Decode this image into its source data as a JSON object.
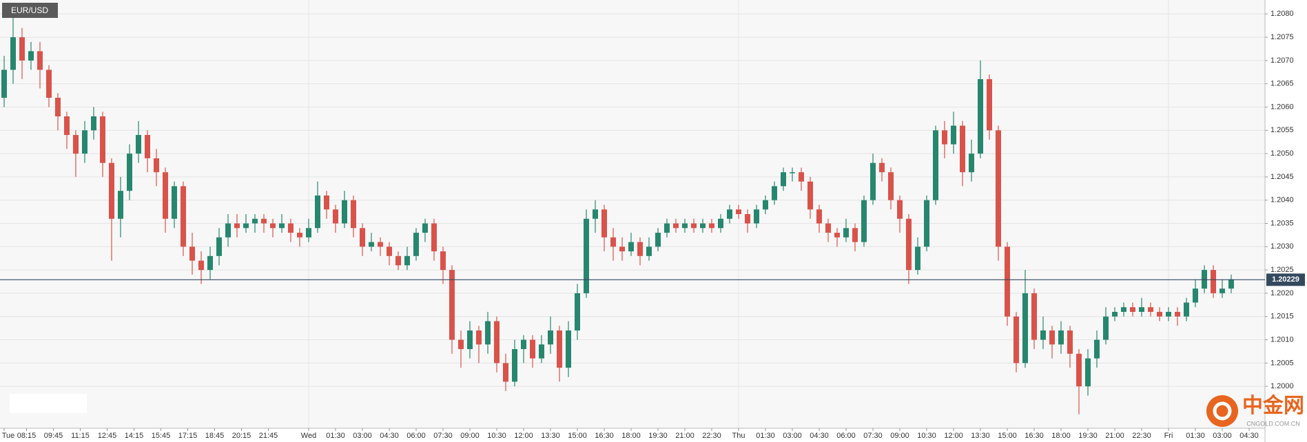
{
  "chart_data": {
    "type": "candlestick",
    "title": "EUR/USD",
    "open": [
      1.2062,
      1.2068,
      1.2075,
      1.207,
      1.2072,
      1.2068,
      1.2062,
      1.2058,
      1.2054,
      1.205,
      1.2055,
      1.2058,
      1.2048,
      1.2036,
      1.2042,
      1.205,
      1.2054,
      1.2049,
      1.2046,
      1.2036,
      1.2043,
      1.203,
      1.2027,
      1.2025,
      1.2028,
      1.2032,
      1.2035,
      1.2034,
      1.2035,
      1.2036,
      1.2035,
      1.2034,
      1.2035,
      1.2033,
      1.2032,
      1.2034,
      1.2041,
      1.2038,
      1.2035,
      1.204,
      1.2034,
      1.203,
      1.2031,
      1.203,
      1.2028,
      1.2026,
      1.2028,
      1.2033,
      1.2035,
      1.2029,
      1.2025,
      1.201,
      1.2008,
      1.2012,
      1.2009,
      1.2014,
      1.2005,
      1.2001,
      1.2008,
      1.201,
      1.2006,
      1.2009,
      1.2012,
      1.2004,
      1.2012,
      1.202,
      1.2036,
      1.2038,
      1.2032,
      1.203,
      1.2029,
      1.2031,
      1.2028,
      1.203,
      1.2033,
      1.2035,
      1.2034,
      1.2035,
      1.2034,
      1.2035,
      1.2034,
      1.2036,
      1.2038,
      1.2037,
      1.2035,
      1.2038,
      1.204,
      1.2043,
      1.2046,
      1.2046,
      1.2044,
      1.2038,
      1.2035,
      1.2033,
      1.2032,
      1.2034,
      1.2031,
      1.204,
      1.2048,
      1.2046,
      1.204,
      1.2036,
      1.2025,
      1.203,
      1.204,
      1.2055,
      1.2052,
      1.2056,
      1.2046,
      1.205,
      1.2066,
      1.2055,
      1.203,
      1.2015,
      1.2005,
      1.202,
      1.201,
      1.2012,
      1.2009,
      1.2012,
      1.2007,
      1.2,
      1.2006,
      1.201,
      1.2015,
      1.2016,
      1.2017,
      1.2016,
      1.2017,
      1.2016,
      1.2015,
      1.2016,
      1.2015,
      1.2018,
      1.2021,
      1.2025,
      1.202,
      1.2021
    ],
    "high": [
      1.2071,
      1.208,
      1.2077,
      1.2074,
      1.2074,
      1.2069,
      1.2063,
      1.2059,
      1.2055,
      1.2057,
      1.206,
      1.2059,
      1.2049,
      1.2045,
      1.2052,
      1.2057,
      1.2055,
      1.2051,
      1.2047,
      1.2044,
      1.2044,
      1.2033,
      1.2029,
      1.203,
      1.2034,
      1.2037,
      1.2037,
      1.2037,
      1.2037,
      1.2037,
      1.2036,
      1.2037,
      1.2036,
      1.2034,
      1.2036,
      1.2044,
      1.2042,
      1.2039,
      1.2042,
      1.2041,
      1.2035,
      1.2033,
      1.2032,
      1.2031,
      1.2029,
      1.203,
      1.2034,
      1.2036,
      1.2036,
      1.203,
      1.2026,
      1.2012,
      1.2014,
      1.2013,
      1.2016,
      1.2015,
      1.2007,
      1.201,
      1.2011,
      1.2011,
      1.2011,
      1.2015,
      1.2013,
      1.2014,
      1.2022,
      1.2038,
      1.204,
      1.2039,
      1.2034,
      1.2032,
      1.2033,
      1.2032,
      1.2032,
      1.2034,
      1.2036,
      1.2036,
      1.2036,
      1.2036,
      1.2036,
      1.2036,
      1.2037,
      1.2039,
      1.2039,
      1.2038,
      1.2039,
      1.2041,
      1.2044,
      1.2047,
      1.2047,
      1.2047,
      1.2045,
      1.2039,
      1.2036,
      1.2034,
      1.2036,
      1.2035,
      1.2041,
      1.205,
      1.2049,
      1.2047,
      1.2041,
      1.2037,
      1.2032,
      1.2041,
      1.2056,
      1.2057,
      1.2059,
      1.2057,
      1.2053,
      1.207,
      1.2067,
      1.2056,
      1.2031,
      1.2016,
      1.2025,
      1.2021,
      1.2015,
      1.2013,
      1.2014,
      1.2013,
      1.2008,
      1.2008,
      1.2012,
      1.2017,
      1.2017,
      1.2018,
      1.2018,
      1.2019,
      1.2018,
      1.2017,
      1.2017,
      1.2017,
      1.2019,
      1.2023,
      1.2026,
      1.2026,
      1.2023,
      1.2024
    ],
    "low": [
      1.206,
      1.2065,
      1.2066,
      1.2068,
      1.2064,
      1.206,
      1.2055,
      1.2051,
      1.2045,
      1.2048,
      1.2053,
      1.2045,
      1.2027,
      1.2032,
      1.204,
      1.2048,
      1.2046,
      1.2043,
      1.2033,
      1.2034,
      1.2028,
      1.2024,
      1.2022,
      1.2023,
      1.2026,
      1.203,
      1.2032,
      1.2033,
      1.2033,
      1.2033,
      1.2032,
      1.2033,
      1.2031,
      1.203,
      1.2031,
      1.2033,
      1.2036,
      1.2033,
      1.2034,
      1.2032,
      1.2028,
      1.2029,
      1.2028,
      1.2026,
      1.2025,
      1.2025,
      1.2027,
      1.2031,
      1.2027,
      1.2022,
      1.2007,
      1.2004,
      1.2006,
      1.2005,
      1.2007,
      1.2003,
      1.1999,
      1.2,
      1.2005,
      1.2004,
      1.2005,
      1.2007,
      1.2001,
      1.2002,
      1.201,
      1.2019,
      1.2033,
      1.2029,
      1.2027,
      1.2027,
      1.2028,
      1.2026,
      1.2027,
      1.2029,
      1.2032,
      1.2033,
      1.2033,
      1.2033,
      1.2033,
      1.2033,
      1.2033,
      1.2035,
      1.2036,
      1.2033,
      1.2034,
      1.2037,
      1.2039,
      1.2042,
      1.2044,
      1.2042,
      1.2036,
      1.2033,
      1.2031,
      1.203,
      1.2031,
      1.2029,
      1.203,
      1.2039,
      1.2044,
      1.2038,
      1.2033,
      1.2022,
      1.2024,
      1.2029,
      1.2039,
      1.2049,
      1.205,
      1.2043,
      1.2044,
      1.2049,
      1.2053,
      1.2027,
      1.2013,
      1.2003,
      1.2004,
      1.2008,
      1.2008,
      1.2006,
      1.2007,
      1.2004,
      1.1994,
      1.1998,
      1.2004,
      1.2009,
      1.2014,
      1.2015,
      1.2015,
      1.2015,
      1.2015,
      1.2014,
      1.2014,
      1.2013,
      1.2014,
      1.2017,
      1.202,
      1.2019,
      1.2019,
      1.202
    ],
    "close": [
      1.2068,
      1.2075,
      1.207,
      1.2072,
      1.2068,
      1.2062,
      1.2058,
      1.2054,
      1.205,
      1.2055,
      1.2058,
      1.2048,
      1.2036,
      1.2042,
      1.205,
      1.2054,
      1.2049,
      1.2046,
      1.2036,
      1.2043,
      1.203,
      1.2027,
      1.2025,
      1.2028,
      1.2032,
      1.2035,
      1.2034,
      1.2035,
      1.2036,
      1.2035,
      1.2034,
      1.2035,
      1.2033,
      1.2032,
      1.2034,
      1.2041,
      1.2038,
      1.2035,
      1.204,
      1.2034,
      1.203,
      1.2031,
      1.203,
      1.2028,
      1.2026,
      1.2028,
      1.2033,
      1.2035,
      1.2029,
      1.2025,
      1.201,
      1.2008,
      1.2012,
      1.2009,
      1.2014,
      1.2005,
      1.2001,
      1.2008,
      1.201,
      1.2006,
      1.2009,
      1.2012,
      1.2004,
      1.2012,
      1.202,
      1.2036,
      1.2038,
      1.2032,
      1.203,
      1.2029,
      1.2031,
      1.2028,
      1.203,
      1.2033,
      1.2035,
      1.2034,
      1.2035,
      1.2034,
      1.2035,
      1.2034,
      1.2036,
      1.2038,
      1.2037,
      1.2035,
      1.2038,
      1.204,
      1.2043,
      1.2046,
      1.2046,
      1.2044,
      1.2038,
      1.2035,
      1.2033,
      1.2032,
      1.2034,
      1.2031,
      1.204,
      1.2048,
      1.2046,
      1.204,
      1.2036,
      1.2025,
      1.203,
      1.204,
      1.2055,
      1.2052,
      1.2056,
      1.2046,
      1.205,
      1.2066,
      1.2055,
      1.203,
      1.2015,
      1.2005,
      1.202,
      1.201,
      1.2012,
      1.2009,
      1.2012,
      1.2007,
      1.2,
      1.2006,
      1.201,
      1.2015,
      1.2016,
      1.2017,
      1.2016,
      1.2017,
      1.2016,
      1.2015,
      1.2016,
      1.2015,
      1.2018,
      1.2021,
      1.2025,
      1.202,
      1.2021,
      1.2023
    ],
    "up_color": "#26876e",
    "down_color": "#d9534a",
    "last_price": 1.20229,
    "last_price_color": "#34495e",
    "ylim": [
      1.1991,
      1.2083
    ],
    "yticks": [
      {
        "value": 1.2,
        "label": "1.2000"
      },
      1.2005,
      {
        "value": 1.201,
        "label": "1.2010"
      },
      1.2015,
      {
        "value": 1.202,
        "label": "1.2020"
      },
      1.2025,
      {
        "value": 1.203,
        "label": "1.2030"
      },
      1.2035,
      {
        "value": 1.204,
        "label": "1.2040"
      },
      1.2045,
      {
        "value": 1.205,
        "label": "1.2050"
      },
      1.2055,
      {
        "value": 1.206,
        "label": "1.2060"
      },
      1.2065,
      {
        "value": 1.207,
        "label": "1.2070"
      },
      1.2075,
      {
        "value": 1.208,
        "label": "1.2080"
      }
    ],
    "xticks": [
      {
        "value": 0,
        "label": "Tue"
      },
      {
        "value": 2.5,
        "label": "08:15"
      },
      {
        "value": 5.5,
        "label": "09:45"
      },
      {
        "value": 8.5,
        "label": "11:15"
      },
      {
        "value": 11.5,
        "label": "12:45"
      },
      {
        "value": 14.5,
        "label": "14:15"
      },
      {
        "value": 17.5,
        "label": "15:45"
      },
      {
        "value": 20.5,
        "label": "17:15"
      },
      {
        "value": 23.5,
        "label": "18:45"
      },
      {
        "value": 26.5,
        "label": "20:15"
      },
      {
        "value": 29.5,
        "label": "21:45"
      },
      {
        "value": 34,
        "label": "Wed"
      },
      {
        "value": 37,
        "label": "01:30"
      },
      {
        "value": 40,
        "label": "03:00"
      },
      {
        "value": 43,
        "label": "04:30"
      },
      {
        "value": 46,
        "label": "06:00"
      },
      {
        "value": 49,
        "label": "07:30"
      },
      {
        "value": 52,
        "label": "09:00"
      },
      {
        "value": 55,
        "label": "10:30"
      },
      {
        "value": 58,
        "label": "12:00"
      },
      {
        "value": 61,
        "label": "13:30"
      },
      {
        "value": 64,
        "label": "15:00"
      },
      {
        "value": 67,
        "label": "16:30"
      },
      {
        "value": 70,
        "label": "18:00"
      },
      {
        "value": 73,
        "label": "19:30"
      },
      {
        "value": 76,
        "label": "21:00"
      },
      {
        "value": 79,
        "label": "22:30"
      },
      {
        "value": 82,
        "label": "Thu"
      },
      {
        "value": 85,
        "label": "01:30"
      },
      {
        "value": 88,
        "label": "03:00"
      },
      {
        "value": 91,
        "label": "04:30"
      },
      {
        "value": 94,
        "label": "06:00"
      },
      {
        "value": 97,
        "label": "07:30"
      },
      {
        "value": 100,
        "label": "09:00"
      },
      {
        "value": 103,
        "label": "10:30"
      },
      {
        "value": 106,
        "label": "12:00"
      },
      {
        "value": 109,
        "label": "13:30"
      },
      {
        "value": 112,
        "label": "15:00"
      },
      {
        "value": 115,
        "label": "16:30"
      },
      {
        "value": 118,
        "label": "18:00"
      },
      {
        "value": 121,
        "label": "19:30"
      },
      {
        "value": 124,
        "label": "21:00"
      },
      {
        "value": 127,
        "label": "22:30"
      },
      {
        "value": 130,
        "label": "Fri"
      },
      {
        "value": 133,
        "label": "01:30"
      },
      {
        "value": 136,
        "label": "03:00"
      },
      {
        "value": 139,
        "label": "04:30"
      }
    ],
    "grid": true
  },
  "watermark": {
    "brand": "中金网",
    "site": "CNGOLD.COM.CN"
  }
}
